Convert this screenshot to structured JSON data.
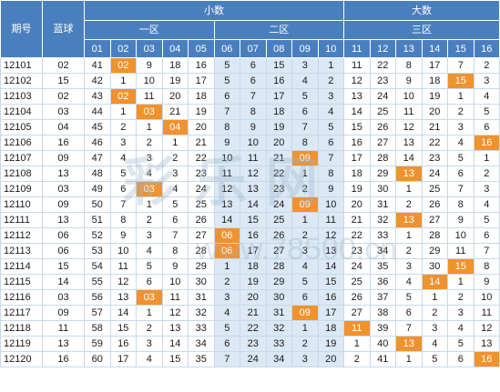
{
  "header": {
    "issue_label": "期号",
    "blue_label": "蓝球",
    "small_group": "小数",
    "big_group": "大数",
    "zones": [
      "一区",
      "二区",
      "三区"
    ],
    "columns": [
      "01",
      "02",
      "03",
      "04",
      "05",
      "06",
      "07",
      "08",
      "09",
      "10",
      "11",
      "12",
      "13",
      "14",
      "15",
      "16"
    ]
  },
  "rows": [
    {
      "issue": "12101",
      "blue": "02",
      "cells": [
        "41",
        "02",
        "9",
        "18",
        "16",
        "5",
        "6",
        "15",
        "3",
        "1",
        "11",
        "22",
        "8",
        "17",
        "7",
        "2"
      ],
      "hit": 1
    },
    {
      "issue": "12102",
      "blue": "15",
      "cells": [
        "42",
        "1",
        "10",
        "19",
        "17",
        "5",
        "6",
        "16",
        "4",
        "2",
        "12",
        "23",
        "9",
        "18",
        "15",
        "3"
      ],
      "hit": 14
    },
    {
      "issue": "12103",
      "blue": "02",
      "cells": [
        "43",
        "02",
        "11",
        "20",
        "18",
        "6",
        "7",
        "17",
        "5",
        "3",
        "13",
        "24",
        "10",
        "19",
        "1",
        "4"
      ],
      "hit": 1
    },
    {
      "issue": "12104",
      "blue": "03",
      "cells": [
        "44",
        "1",
        "03",
        "21",
        "19",
        "7",
        "8",
        "18",
        "6",
        "4",
        "14",
        "25",
        "11",
        "20",
        "2",
        "5"
      ],
      "hit": 2
    },
    {
      "issue": "12105",
      "blue": "04",
      "cells": [
        "45",
        "2",
        "1",
        "04",
        "20",
        "8",
        "9",
        "19",
        "7",
        "5",
        "15",
        "26",
        "12",
        "21",
        "3",
        "6"
      ],
      "hit": 3
    },
    {
      "issue": "12106",
      "blue": "16",
      "cells": [
        "46",
        "3",
        "2",
        "1",
        "21",
        "9",
        "10",
        "20",
        "8",
        "6",
        "16",
        "27",
        "13",
        "22",
        "4",
        "16"
      ],
      "hit": 15
    },
    {
      "issue": "12107",
      "blue": "09",
      "cells": [
        "47",
        "4",
        "3",
        "2",
        "22",
        "10",
        "11",
        "21",
        "09",
        "7",
        "17",
        "28",
        "14",
        "23",
        "5",
        "1"
      ],
      "hit": 8
    },
    {
      "issue": "12108",
      "blue": "13",
      "cells": [
        "48",
        "5",
        "4",
        "3",
        "23",
        "11",
        "12",
        "22",
        "1",
        "8",
        "18",
        "29",
        "13",
        "24",
        "6",
        "2"
      ],
      "hit": 12
    },
    {
      "issue": "12109",
      "blue": "03",
      "cells": [
        "49",
        "6",
        "03",
        "4",
        "24",
        "12",
        "13",
        "23",
        "2",
        "9",
        "19",
        "30",
        "1",
        "25",
        "7",
        "3"
      ],
      "hit": 2
    },
    {
      "issue": "12110",
      "blue": "09",
      "cells": [
        "50",
        "7",
        "1",
        "5",
        "25",
        "13",
        "14",
        "24",
        "09",
        "10",
        "20",
        "31",
        "2",
        "26",
        "8",
        "4"
      ],
      "hit": 8
    },
    {
      "issue": "12111",
      "blue": "13",
      "cells": [
        "51",
        "8",
        "2",
        "6",
        "26",
        "14",
        "15",
        "25",
        "1",
        "11",
        "21",
        "32",
        "13",
        "27",
        "9",
        "5"
      ],
      "hit": 12
    },
    {
      "issue": "12112",
      "blue": "06",
      "cells": [
        "52",
        "9",
        "3",
        "7",
        "27",
        "06",
        "16",
        "26",
        "2",
        "12",
        "22",
        "33",
        "1",
        "28",
        "10",
        "6"
      ],
      "hit": 5
    },
    {
      "issue": "12113",
      "blue": "06",
      "cells": [
        "53",
        "10",
        "4",
        "8",
        "28",
        "06",
        "17",
        "27",
        "3",
        "13",
        "23",
        "34",
        "2",
        "29",
        "11",
        "7"
      ],
      "hit": 5
    },
    {
      "issue": "12114",
      "blue": "15",
      "cells": [
        "54",
        "11",
        "5",
        "9",
        "29",
        "1",
        "18",
        "28",
        "4",
        "14",
        "24",
        "35",
        "3",
        "30",
        "15",
        "8"
      ],
      "hit": 14
    },
    {
      "issue": "12115",
      "blue": "14",
      "cells": [
        "55",
        "12",
        "6",
        "10",
        "30",
        "2",
        "19",
        "29",
        "5",
        "15",
        "25",
        "36",
        "4",
        "14",
        "1",
        "9"
      ],
      "hit": 13
    },
    {
      "issue": "12116",
      "blue": "03",
      "cells": [
        "56",
        "13",
        "03",
        "11",
        "31",
        "3",
        "20",
        "30",
        "6",
        "16",
        "26",
        "37",
        "5",
        "1",
        "2",
        "10"
      ],
      "hit": 2
    },
    {
      "issue": "12117",
      "blue": "09",
      "cells": [
        "57",
        "14",
        "1",
        "12",
        "32",
        "4",
        "21",
        "31",
        "09",
        "17",
        "27",
        "38",
        "6",
        "2",
        "3",
        "11"
      ],
      "hit": 8
    },
    {
      "issue": "12118",
      "blue": "11",
      "cells": [
        "58",
        "15",
        "2",
        "13",
        "33",
        "5",
        "22",
        "32",
        "1",
        "18",
        "11",
        "39",
        "7",
        "3",
        "4",
        "12"
      ],
      "hit": 10
    },
    {
      "issue": "12119",
      "blue": "13",
      "cells": [
        "59",
        "16",
        "3",
        "14",
        "34",
        "6",
        "23",
        "33",
        "2",
        "19",
        "1",
        "40",
        "13",
        "4",
        "5",
        "13"
      ],
      "hit": 12
    },
    {
      "issue": "12120",
      "blue": "16",
      "cells": [
        "60",
        "17",
        "4",
        "15",
        "35",
        "7",
        "24",
        "34",
        "3",
        "20",
        "2",
        "41",
        "1",
        "5",
        "6",
        "16"
      ],
      "hit": 15
    }
  ],
  "colors": {
    "header": "#4a7fbf",
    "zone2": "#dbe8f5",
    "hit": "#f0922e",
    "border": "#c9d9e9"
  },
  "watermark": {
    "text": "彩 乐 网",
    "url": "www.78500.cn"
  }
}
